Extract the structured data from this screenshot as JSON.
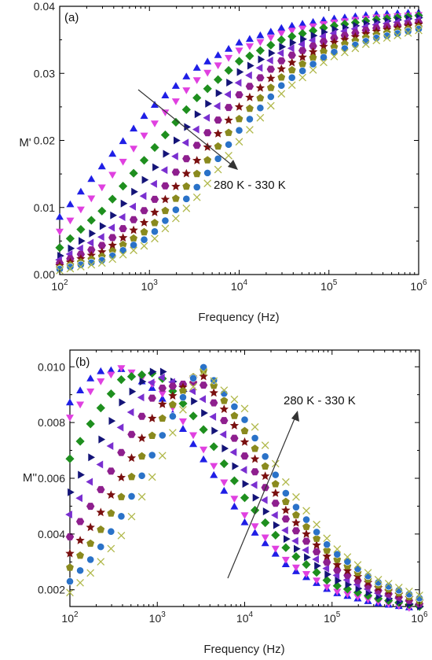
{
  "chart_data": [
    {
      "type": "scatter",
      "panel": "(a)",
      "xlabel": "Frequency (Hz)",
      "ylabel": "M'",
      "xscale": "log",
      "xlim": [
        100,
        1000000
      ],
      "ylim": [
        0,
        0.04
      ],
      "xticks": [
        "10",
        "10",
        "10",
        "10",
        "10"
      ],
      "xtick_exponents": [
        "2",
        "3",
        "4",
        "5",
        "6"
      ],
      "yticks": [
        "0.00",
        "0.01",
        "0.02",
        "0.03",
        "0.04"
      ],
      "annotation": "280 K - 330 K",
      "grid": false,
      "series": [
        {
          "color": "#1f1fe6",
          "marker": "triangle-up",
          "x": [
            100,
            316,
            1000,
            3162,
            10000,
            31623,
            100000,
            316228,
            1000000
          ],
          "y": [
            0.0085,
            0.0165,
            0.0245,
            0.0305,
            0.0345,
            0.0368,
            0.038,
            0.0387,
            0.039
          ]
        },
        {
          "color": "#e040e0",
          "marker": "triangle-down",
          "x": [
            100,
            316,
            1000,
            3162,
            10000,
            31623,
            100000,
            316228,
            1000000
          ],
          "y": [
            0.0065,
            0.0135,
            0.0218,
            0.0288,
            0.0335,
            0.0362,
            0.0376,
            0.0384,
            0.0388
          ]
        },
        {
          "color": "#1e8f1e",
          "marker": "diamond",
          "x": [
            100,
            316,
            1000,
            3162,
            10000,
            31623,
            100000,
            316228,
            1000000
          ],
          "y": [
            0.004,
            0.0098,
            0.018,
            0.026,
            0.0318,
            0.0352,
            0.037,
            0.038,
            0.0386
          ]
        },
        {
          "color": "#141478",
          "marker": "triangle-right",
          "x": [
            100,
            316,
            1000,
            3162,
            10000,
            31623,
            100000,
            316228,
            1000000
          ],
          "y": [
            0.0028,
            0.0075,
            0.015,
            0.0235,
            0.0302,
            0.0342,
            0.0364,
            0.0376,
            0.0383
          ]
        },
        {
          "color": "#7a2fd0",
          "marker": "triangle-left",
          "x": [
            100,
            316,
            1000,
            3162,
            10000,
            31623,
            100000,
            316228,
            1000000
          ],
          "y": [
            0.0022,
            0.0058,
            0.0125,
            0.0212,
            0.0286,
            0.0333,
            0.0358,
            0.0372,
            0.038
          ]
        },
        {
          "color": "#8e1f8e",
          "marker": "hexagon",
          "x": [
            100,
            316,
            1000,
            3162,
            10000,
            31623,
            100000,
            316228,
            1000000
          ],
          "y": [
            0.0017,
            0.0045,
            0.0102,
            0.0188,
            0.0268,
            0.0322,
            0.0351,
            0.0367,
            0.0376
          ]
        },
        {
          "color": "#7a1010",
          "marker": "star",
          "x": [
            100,
            316,
            1000,
            3162,
            10000,
            31623,
            100000,
            316228,
            1000000
          ],
          "y": [
            0.0013,
            0.0035,
            0.0083,
            0.0165,
            0.025,
            0.031,
            0.0344,
            0.0362,
            0.0373
          ]
        },
        {
          "color": "#8a8a1e",
          "marker": "pentagon",
          "x": [
            100,
            316,
            1000,
            3162,
            10000,
            31623,
            100000,
            316228,
            1000000
          ],
          "y": [
            0.001,
            0.0028,
            0.0068,
            0.0145,
            0.0232,
            0.0298,
            0.0337,
            0.0357,
            0.0369
          ]
        },
        {
          "color": "#2a72c8",
          "marker": "sphere",
          "x": [
            100,
            316,
            1000,
            3162,
            10000,
            31623,
            100000,
            316228,
            1000000
          ],
          "y": [
            0.0008,
            0.0022,
            0.0056,
            0.0125,
            0.0215,
            0.0286,
            0.0329,
            0.0352,
            0.0366
          ]
        },
        {
          "color": "#b0b84a",
          "marker": "cross",
          "x": [
            100,
            316,
            1000,
            3162,
            10000,
            31623,
            100000,
            316228,
            1000000
          ],
          "y": [
            0.0006,
            0.0018,
            0.0046,
            0.011,
            0.0198,
            0.0274,
            0.0322,
            0.0348,
            0.0364
          ]
        }
      ]
    },
    {
      "type": "scatter",
      "panel": "(b)",
      "xlabel": "Frequency (Hz)",
      "ylabel": "M''",
      "xscale": "log",
      "xlim": [
        100,
        1000000
      ],
      "ylim": [
        0.0014,
        0.0106
      ],
      "xticks": [
        "10",
        "10",
        "10",
        "10",
        "10"
      ],
      "xtick_exponents": [
        "2",
        "3",
        "4",
        "5",
        "6"
      ],
      "yticks": [
        "0.002",
        "0.004",
        "0.006",
        "0.008",
        "0.010"
      ],
      "annotation": "280 K - 330 K",
      "grid": false,
      "series": [
        {
          "color": "#1f1fe6",
          "marker": "triangle-up",
          "peak_x": 200,
          "x": [
            100,
            200,
            400,
            1000,
            3162,
            10000,
            31623,
            100000,
            316228,
            1000000
          ],
          "y": [
            0.0087,
            0.0098,
            0.0099,
            0.0091,
            0.0068,
            0.0044,
            0.0028,
            0.0019,
            0.0015,
            0.0013
          ]
        },
        {
          "color": "#e040e0",
          "marker": "triangle-down",
          "peak_x": 320,
          "x": [
            100,
            200,
            400,
            1000,
            3162,
            10000,
            31623,
            100000,
            316228,
            1000000
          ],
          "y": [
            0.0082,
            0.0094,
            0.01,
            0.0093,
            0.0072,
            0.0047,
            0.003,
            0.002,
            0.0016,
            0.0013
          ]
        },
        {
          "color": "#1e8f1e",
          "marker": "diamond",
          "peak_x": 600,
          "x": [
            100,
            200,
            400,
            1000,
            3162,
            10000,
            31623,
            100000,
            316228,
            1000000
          ],
          "y": [
            0.0067,
            0.0083,
            0.0096,
            0.0098,
            0.0079,
            0.0053,
            0.0034,
            0.0022,
            0.0017,
            0.0014
          ]
        },
        {
          "color": "#141478",
          "marker": "triangle-right",
          "peak_x": 900,
          "x": [
            100,
            200,
            400,
            1000,
            3162,
            10000,
            31623,
            100000,
            316228,
            1000000
          ],
          "y": [
            0.0055,
            0.0071,
            0.0088,
            0.01,
            0.0085,
            0.0058,
            0.0037,
            0.0024,
            0.0018,
            0.0014
          ]
        },
        {
          "color": "#7a2fd0",
          "marker": "triangle-left",
          "peak_x": 1300,
          "x": [
            100,
            200,
            400,
            1000,
            3162,
            10000,
            31623,
            100000,
            316228,
            1000000
          ],
          "y": [
            0.0047,
            0.0062,
            0.0079,
            0.0097,
            0.009,
            0.0063,
            0.004,
            0.0026,
            0.0019,
            0.0015
          ]
        },
        {
          "color": "#8e1f8e",
          "marker": "hexagon",
          "peak_x": 1800,
          "x": [
            100,
            200,
            400,
            1000,
            3162,
            10000,
            31623,
            100000,
            316228,
            1000000
          ],
          "y": [
            0.0039,
            0.0053,
            0.007,
            0.0092,
            0.0095,
            0.0068,
            0.0044,
            0.0028,
            0.002,
            0.0015
          ]
        },
        {
          "color": "#7a1010",
          "marker": "star",
          "peak_x": 2500,
          "x": [
            100,
            200,
            400,
            1000,
            3162,
            10000,
            31623,
            100000,
            316228,
            1000000
          ],
          "y": [
            0.0033,
            0.0045,
            0.0061,
            0.0085,
            0.0098,
            0.0073,
            0.0047,
            0.003,
            0.0021,
            0.0016
          ]
        },
        {
          "color": "#8a8a1e",
          "marker": "pentagon",
          "peak_x": 3000,
          "x": [
            100,
            200,
            400,
            1000,
            3162,
            10000,
            31623,
            100000,
            316228,
            1000000
          ],
          "y": [
            0.0028,
            0.0039,
            0.0054,
            0.0079,
            0.01,
            0.0077,
            0.005,
            0.0032,
            0.0022,
            0.0016
          ]
        },
        {
          "color": "#2a72c8",
          "marker": "sphere",
          "peak_x": 3800,
          "x": [
            100,
            200,
            400,
            1000,
            3162,
            10000,
            31623,
            100000,
            316228,
            1000000
          ],
          "y": [
            0.0023,
            0.0033,
            0.0047,
            0.0072,
            0.0101,
            0.0081,
            0.0053,
            0.0034,
            0.0023,
            0.0017
          ]
        },
        {
          "color": "#b0b84a",
          "marker": "cross",
          "peak_x": 4800,
          "x": [
            100,
            200,
            400,
            1000,
            3162,
            10000,
            31623,
            100000,
            316228,
            1000000
          ],
          "y": [
            0.0019,
            0.0028,
            0.004,
            0.0064,
            0.0099,
            0.0085,
            0.0057,
            0.0036,
            0.0024,
            0.0018
          ]
        }
      ]
    }
  ]
}
